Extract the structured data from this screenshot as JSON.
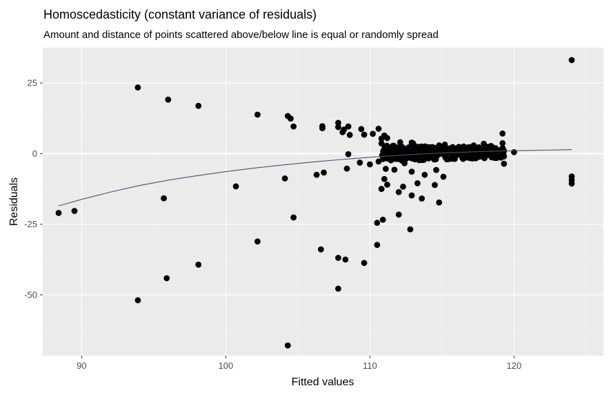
{
  "chart_data": {
    "type": "scatter",
    "title": "Homoscedasticity (constant variance of residuals)",
    "subtitle": "Amount and distance of points scattered above/below line is equal or randomly spread",
    "xlabel": "Fitted values",
    "ylabel": "Residuals",
    "xlim": [
      87.3,
      126.2
    ],
    "ylim": [
      -71.5,
      37.5
    ],
    "x_ticks": [
      90,
      100,
      110,
      120
    ],
    "y_ticks": [
      25,
      0,
      -25,
      -50
    ],
    "grid": true,
    "background_color": "#ebebeb",
    "point_color": "#000000",
    "trend_color": "#4a4f73",
    "trend": {
      "x": [
        88.4,
        90,
        92,
        94,
        96,
        98,
        100,
        102,
        104,
        106,
        108,
        110,
        112,
        114,
        116,
        118,
        120,
        122,
        124
      ],
      "y": [
        -18.5,
        -16.2,
        -13.6,
        -11.3,
        -9.4,
        -7.8,
        -6.4,
        -5.1,
        -4.0,
        -3.0,
        -2.1,
        -1.3,
        -0.6,
        0.0,
        0.4,
        0.8,
        1.0,
        1.2,
        1.4
      ]
    },
    "points": {
      "x": [
        88.4,
        89.5,
        93.9,
        96.0,
        98.1,
        102.2,
        104.3,
        104.5,
        104.7,
        106.7,
        106.7,
        107.8,
        107.8,
        108.2,
        108.1,
        108.5,
        108.6,
        109.4,
        109.6,
        110.2,
        110.6,
        110.8,
        111.0,
        111.2,
        112.1,
        113.0,
        113.1,
        114.0,
        114.5,
        114.8,
        115.3,
        116.5,
        117.2,
        117.9,
        118.4,
        119.2,
        119.3,
        120.0,
        111.4,
        112.6,
        113.6,
        115.8,
        116.9,
        118.8,
        100.7,
        104.1,
        106.3,
        106.8,
        108.4,
        108.5,
        109.3,
        110.0,
        110.6,
        111.1,
        111.7,
        112.4,
        112.9,
        113.8,
        114.6,
        115.1,
        113.3,
        112.3,
        111.2,
        110.8,
        111.0,
        112.0,
        112.9,
        114.5,
        113.6,
        114.8,
        95.7,
        102.2,
        104.7,
        106.6,
        107.8,
        108.3,
        109.6,
        110.5,
        110.9,
        112.0,
        112.8,
        95.9,
        93.9,
        98.1,
        107.8,
        110.5,
        104.3,
        124.0,
        124.0,
        124.0,
        124.0,
        119.3,
        119.3,
        118.8,
        118.9,
        117.6,
        110.8,
        111.6,
        112.9,
        115.2,
        117.0,
        118.2,
        119.2
      ],
      "y": [
        -21,
        -20.3,
        23.4,
        19.1,
        16.9,
        13.8,
        13.3,
        12.4,
        9.6,
        9.7,
        9.0,
        10.9,
        9.4,
        8.5,
        7.6,
        9.6,
        6.6,
        8.7,
        6.7,
        7.0,
        8.8,
        5.3,
        6.4,
        5.5,
        4.0,
        3.6,
        1.8,
        2.3,
        1.5,
        2.9,
        1.7,
        2.5,
        2.9,
        3.5,
        2.7,
        3.7,
        1.0,
        0.5,
        -1.2,
        -0.8,
        -1.5,
        -1.3,
        -0.6,
        -1.5,
        -11.6,
        -8.8,
        -7.5,
        -6.7,
        -5.3,
        -0.2,
        -3.2,
        -3.8,
        -2.8,
        -5.4,
        -5.7,
        -3.4,
        -6.4,
        -7.5,
        -5.8,
        -8.2,
        -10.5,
        -11.7,
        -11.0,
        -12.5,
        -9.0,
        -13.6,
        -14.8,
        -11.1,
        -15.9,
        -17.3,
        -15.8,
        -31.1,
        -22.6,
        -33.9,
        -36.9,
        -37.5,
        -38.7,
        -32.3,
        -23.4,
        -21.6,
        -26.8,
        -44.1,
        -51.9,
        -39.3,
        -47.8,
        -24.5,
        -67.9,
        33.1,
        -8.1,
        -9.4,
        -10.6,
        -3.6,
        -1.0,
        0.6,
        0.8,
        1.2,
        3.6,
        2.8,
        3.9,
        3.2,
        2.0,
        2.4,
        7.1
      ]
    },
    "dense_band": {
      "x_range": [
        110.8,
        119.3
      ],
      "y_center": [
        0.1,
        0.3
      ],
      "y_spread": [
        2.8,
        1.8
      ],
      "count": 320
    }
  }
}
